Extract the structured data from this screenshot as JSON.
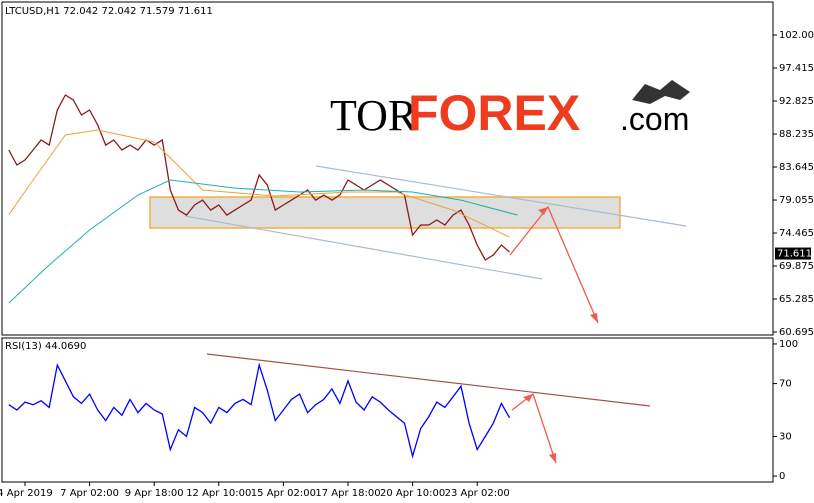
{
  "chart_data": [
    {
      "type": "line",
      "title": "LTCUSD,H1 72.042 72.042 71.579 71.611",
      "categories": [
        null,
        null,
        "4 Apr 2019",
        null,
        null,
        null,
        null,
        null,
        null,
        null,
        "7 Apr 02:00",
        null,
        null,
        null,
        null,
        null,
        null,
        null,
        "9 Apr 18:00",
        null,
        null,
        null,
        null,
        null,
        null,
        null,
        "12 Apr 10:00",
        null,
        null,
        null,
        null,
        null,
        null,
        null,
        "15 Apr 02:00",
        null,
        null,
        null,
        null,
        null,
        null,
        null,
        "17 Apr 18:00",
        null,
        null,
        null,
        null,
        null,
        null,
        null,
        "20 Apr 10:00",
        null,
        null,
        null,
        null,
        null,
        null,
        null,
        "23 Apr 02:00",
        null,
        null,
        null,
        null
      ],
      "series": [
        {
          "color": "#8b1a1a",
          "values": [
            86.01,
            83.92,
            84.62,
            86.01,
            87.4,
            86.7,
            91.57,
            93.66,
            92.96,
            90.88,
            91.57,
            89.49,
            86.7,
            87.4,
            86.01,
            86.7,
            86.01,
            87.4,
            86.7,
            87.4,
            80.45,
            77.66,
            76.96,
            78.36,
            79.05,
            77.66,
            78.36,
            76.96,
            77.66,
            78.36,
            79.05,
            82.53,
            81.14,
            77.66,
            78.36,
            79.05,
            79.75,
            80.45,
            79.05,
            79.75,
            79.05,
            79.75,
            81.84,
            81.14,
            80.45,
            81.14,
            81.84,
            81.14,
            80.45,
            79.75,
            74.19,
            75.58,
            75.58,
            76.27,
            75.58,
            76.96,
            77.66,
            75.58,
            72.8,
            70.71,
            71.41,
            72.8,
            71.82
          ]
        },
        {
          "color": "#e8a33c",
          "x": [
            0,
            3,
            7,
            11,
            18,
            24,
            33,
            42,
            48,
            55,
            62
          ],
          "values": [
            77.0,
            81.84,
            88.1,
            88.79,
            87.12,
            80.45,
            79.61,
            80.17,
            80.17,
            77.66,
            73.9
          ]
        },
        {
          "color": "#20b2aa",
          "x": [
            0,
            5,
            10,
            16,
            20,
            28,
            36,
            44,
            50,
            56,
            63
          ],
          "values": [
            64.73,
            70.01,
            74.88,
            79.75,
            81.84,
            80.72,
            80.17,
            80.45,
            80.17,
            79.05,
            76.96
          ]
        }
      ],
      "ylim": [
        60.28,
        106.46
      ],
      "yticks": [
        60.695,
        65.285,
        69.875,
        74.465,
        79.055,
        83.645,
        88.235,
        92.825,
        97.415,
        102.005
      ],
      "last_price": 71.611,
      "grid": false
    },
    {
      "type": "line",
      "title": "RSI(13) 44.0690",
      "series": [
        {
          "color": "#0000ff",
          "values": [
            54,
            50,
            56,
            54,
            57,
            52,
            84,
            72,
            60,
            55,
            62,
            50,
            42,
            52,
            46,
            58,
            48,
            55,
            50,
            47,
            20,
            35,
            30,
            52,
            48,
            40,
            52,
            48,
            55,
            58,
            54,
            84,
            65,
            42,
            50,
            58,
            62,
            48,
            54,
            58,
            66,
            55,
            72,
            56,
            50,
            60,
            56,
            50,
            45,
            40,
            15,
            36,
            45,
            56,
            52,
            60,
            68,
            40,
            20,
            30,
            40,
            55,
            44.069
          ]
        }
      ],
      "ylim": [
        -4.5,
        104.5
      ],
      "yticks": [
        0,
        30,
        70,
        100
      ],
      "grid": false
    }
  ],
  "logo": {
    "prefix": "TOR",
    "brand": "FOREX",
    "suffix": ".com"
  }
}
